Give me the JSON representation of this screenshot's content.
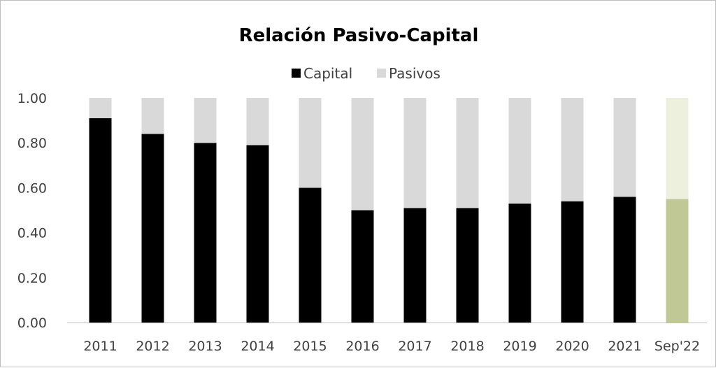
{
  "chart_data": {
    "type": "bar",
    "stacked": true,
    "title": "Relación Pasivo-Capital",
    "categories": [
      "2011",
      "2012",
      "2013",
      "2014",
      "2015",
      "2016",
      "2017",
      "2018",
      "2019",
      "2020",
      "2021",
      "Sep'22"
    ],
    "series": [
      {
        "name": "Capital",
        "color": "#000000",
        "values": [
          0.91,
          0.84,
          0.8,
          0.79,
          0.6,
          0.5,
          0.51,
          0.51,
          0.53,
          0.54,
          0.56,
          0.55
        ]
      },
      {
        "name": "Pasivos",
        "color": "#d9d9d9",
        "values": [
          0.09,
          0.16,
          0.2,
          0.21,
          0.4,
          0.5,
          0.49,
          0.49,
          0.47,
          0.46,
          0.44,
          0.45
        ]
      }
    ],
    "highlight": {
      "category": "Sep'22",
      "colors": [
        "#c0c896",
        "#eef0de"
      ]
    },
    "ylim": [
      0,
      1
    ],
    "yticks": [
      "0.00",
      "0.20",
      "0.40",
      "0.60",
      "0.80",
      "1.00"
    ],
    "grid": false,
    "legend": "top"
  }
}
